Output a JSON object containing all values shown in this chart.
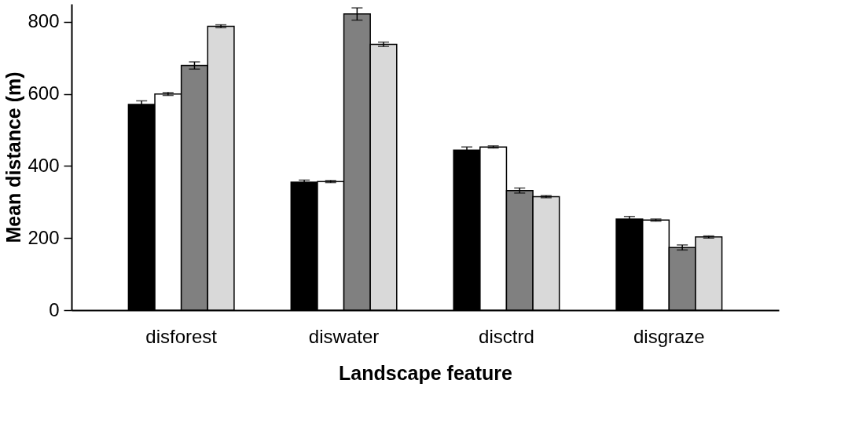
{
  "chart_data": {
    "type": "bar",
    "xlabel": "Landscape feature",
    "ylabel": "Mean distance (m)",
    "categories": [
      "disforest",
      "diswater",
      "disctrd",
      "disgraze"
    ],
    "series": [
      {
        "color": "#000000",
        "values": [
          571,
          355,
          444,
          253
        ],
        "errors": [
          10,
          6,
          9,
          7
        ]
      },
      {
        "color": "#ffffff",
        "values": [
          600,
          357,
          453,
          250
        ],
        "errors": [
          4,
          3,
          3,
          3
        ]
      },
      {
        "color": "#808080",
        "values": [
          679,
          822,
          332,
          174
        ],
        "errors": [
          10,
          17,
          7,
          7
        ]
      },
      {
        "color": "#d9d9d9",
        "values": [
          788,
          738,
          315,
          203
        ],
        "errors": [
          4,
          6,
          3,
          3
        ]
      }
    ],
    "ylim": [
      0,
      850
    ],
    "yticks": [
      0,
      200,
      400,
      600,
      800
    ],
    "grid": false,
    "legend": false
  }
}
